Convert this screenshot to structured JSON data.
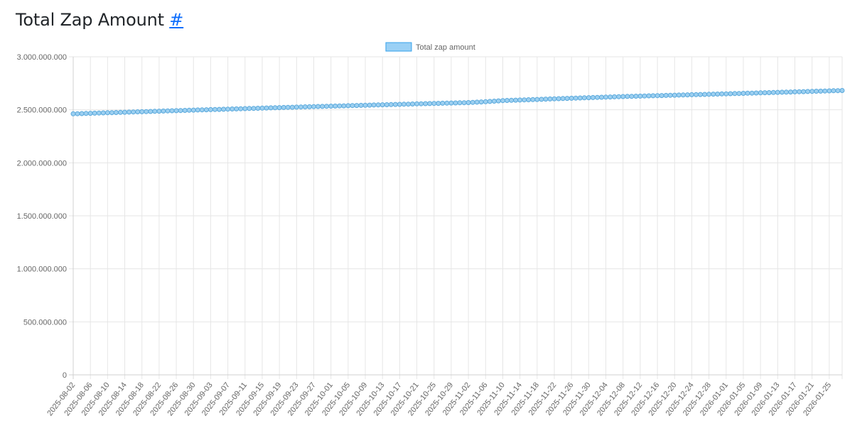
{
  "header": {
    "title": "Total Zap Amount",
    "anchor": "#"
  },
  "colors": {
    "line": "#7cbbe3",
    "point_fill": "#9ccff0",
    "point_stroke": "#5aa9dc",
    "legend_fill": "#9ad0f5",
    "legend_stroke": "#36a2eb",
    "grid": "#e6e6e6",
    "tick_text": "#666666"
  },
  "chart_data": {
    "type": "line",
    "legend": {
      "position": "top",
      "entries": [
        "Total zap amount"
      ]
    },
    "grid": true,
    "ylim": [
      0,
      3000000000
    ],
    "yticks": [
      0,
      500000000,
      1000000000,
      1500000000,
      2000000000,
      2500000000,
      3000000000
    ],
    "ytick_labels": [
      "0",
      "500.000.000",
      "1.000.000.000",
      "1.500.000.000",
      "2.000.000.000",
      "2.500.000.000",
      "3.000.000.000"
    ],
    "x_start": "2025-08-02",
    "x_end": "2026-01-28",
    "x_tick_labels": [
      "2025-08-02",
      "2025-08-06",
      "2025-08-10",
      "2025-08-14",
      "2025-08-18",
      "2025-08-22",
      "2025-08-26",
      "2025-08-30",
      "2025-09-03",
      "2025-09-07",
      "2025-09-11",
      "2025-09-15",
      "2025-09-19",
      "2025-09-23",
      "2025-09-27",
      "2025-10-01",
      "2025-10-05",
      "2025-10-09",
      "2025-10-13",
      "2025-10-17",
      "2025-10-21",
      "2025-10-25",
      "2025-10-29",
      "2025-11-02",
      "2025-11-06",
      "2025-11-10",
      "2025-11-14",
      "2025-11-18",
      "2025-11-22",
      "2025-11-26",
      "2025-11-30",
      "2025-12-04",
      "2025-12-08",
      "2025-12-12",
      "2025-12-16",
      "2025-12-20",
      "2025-12-24",
      "2025-12-28",
      "2026-01-01",
      "2026-01-05",
      "2026-01-09",
      "2026-01-13",
      "2026-01-17",
      "2026-01-21",
      "2026-01-25"
    ],
    "series": [
      {
        "name": "Total zap amount",
        "points": [
          [
            "2025-08-02",
            2462000000
          ],
          [
            "2025-08-30",
            2497000000
          ],
          [
            "2025-09-27",
            2530000000
          ],
          [
            "2025-10-25",
            2560000000
          ],
          [
            "2025-11-02",
            2568000000
          ],
          [
            "2025-11-06",
            2576000000
          ],
          [
            "2025-11-10",
            2587000000
          ],
          [
            "2025-12-08",
            2625000000
          ],
          [
            "2026-01-05",
            2655000000
          ],
          [
            "2026-01-28",
            2682000000
          ]
        ]
      }
    ]
  }
}
